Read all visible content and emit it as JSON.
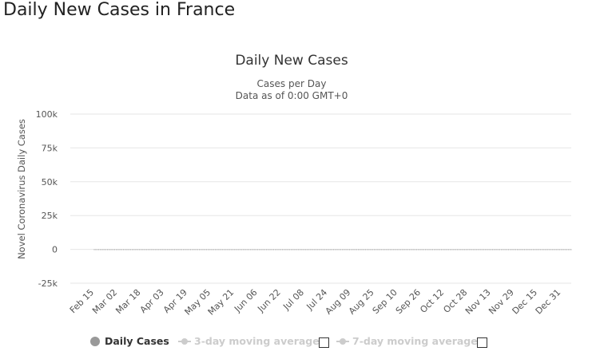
{
  "page": {
    "title": "Daily New Cases in France"
  },
  "legend": {
    "daily": "Daily Cases",
    "ma3": "3-day moving average",
    "ma7": "7-day moving average"
  },
  "colors": {
    "bars": "#666666",
    "grid": "#e6e6e6",
    "legend_active": "#333333",
    "legend_inactive": "#cccccc"
  },
  "chart_data": {
    "type": "bar",
    "title": "Daily New Cases",
    "subtitle_lines": [
      "Cases per Day",
      "Data as of 0:00 GMT+0"
    ],
    "ylabel": "Novel Coronavirus Daily Cases",
    "xlabel": "",
    "ylim": [
      -25000,
      100000
    ],
    "yticks": [
      -25000,
      0,
      25000,
      50000,
      75000,
      100000
    ],
    "ytick_labels": [
      "-25k",
      "0",
      "25k",
      "50k",
      "75k",
      "100k"
    ],
    "xtick_labels": [
      "Feb 15",
      "Mar 02",
      "Mar 18",
      "Apr 03",
      "Apr 19",
      "May 05",
      "May 21",
      "Jun 06",
      "Jun 22",
      "Jul 08",
      "Jul 24",
      "Aug 09",
      "Aug 25",
      "Sep 10",
      "Sep 26",
      "Oct 12",
      "Oct 28",
      "Nov 13",
      "Nov 29",
      "Dec 15",
      "Dec 31"
    ],
    "x_range": [
      "Feb 15",
      "Jan 07"
    ],
    "grid": true,
    "legend_position": "bottom",
    "series": [
      {
        "name": "Daily Cases",
        "values": [
          0,
          0,
          0,
          0,
          0,
          0,
          0,
          0,
          0,
          0,
          0,
          0,
          0,
          0,
          0,
          0,
          0,
          0,
          0,
          0,
          0,
          0,
          0,
          0,
          0,
          0,
          0,
          0,
          0,
          0,
          0,
          0,
          0,
          0,
          0,
          0,
          0,
          0,
          0,
          0,
          0,
          0,
          0,
          0,
          0,
          0,
          0,
          0,
          0,
          0,
          0,
          0,
          0,
          0,
          0,
          0,
          0,
          0,
          0,
          0,
          0,
          0,
          0,
          0,
          0,
          0,
          0,
          0,
          0,
          0,
          0,
          0,
          0,
          0,
          0,
          0,
          0,
          0,
          0,
          0,
          0,
          0,
          0,
          0,
          0,
          0,
          0,
          0,
          0,
          0,
          0,
          0,
          0,
          0,
          0,
          0,
          0,
          0,
          0,
          0,
          0,
          0,
          0,
          0,
          0,
          0,
          0,
          0,
          0,
          0,
          0,
          0,
          0,
          0,
          0,
          0,
          0,
          0,
          0,
          0,
          0,
          0,
          0,
          0,
          0,
          0,
          0,
          0,
          0,
          0,
          0,
          0,
          0,
          0,
          0,
          0,
          0,
          0,
          0,
          0,
          0,
          0,
          0,
          0,
          0,
          0,
          0,
          0,
          0,
          0,
          0,
          0,
          0,
          0,
          0,
          0,
          0,
          0,
          0,
          0,
          0,
          0,
          0,
          0,
          0,
          0,
          0,
          0,
          0,
          0,
          0,
          0,
          0,
          0,
          0,
          0,
          0,
          0,
          0,
          0,
          0,
          0,
          0,
          0,
          0,
          0,
          0,
          0,
          0,
          0,
          0,
          0,
          0,
          0,
          0,
          0,
          0,
          0,
          0,
          0,
          0,
          0,
          0,
          0,
          0,
          0,
          0,
          0,
          0,
          0,
          0,
          0,
          0,
          0,
          0,
          0,
          0,
          0,
          0,
          0,
          0,
          0,
          0,
          0,
          0,
          0,
          0,
          0,
          0,
          0,
          0,
          0,
          0,
          0,
          0,
          0,
          0,
          0,
          0,
          0,
          0,
          0,
          0,
          0,
          0,
          0,
          0,
          0,
          0,
          0,
          0,
          0,
          0,
          0,
          0,
          0,
          0,
          0,
          0,
          0,
          0,
          0,
          0,
          0,
          0,
          0,
          0,
          0,
          0,
          0,
          0,
          0,
          0,
          0,
          0,
          0,
          0,
          0,
          0,
          0,
          0,
          0,
          0,
          0,
          0,
          0,
          0,
          0,
          0,
          0,
          0,
          0,
          0,
          0,
          0,
          0,
          0,
          0,
          0,
          0,
          0,
          0,
          0,
          0,
          0,
          0,
          0,
          0,
          0,
          0,
          0,
          0,
          0,
          0,
          0,
          0,
          0,
          0,
          0,
          0,
          0,
          0,
          0,
          0,
          0,
          0,
          0,
          0
        ]
      }
    ]
  }
}
